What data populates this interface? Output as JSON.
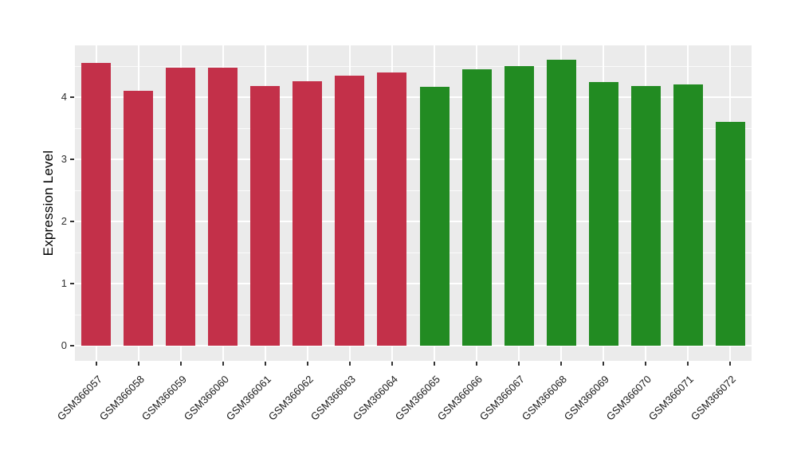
{
  "chart_data": {
    "type": "bar",
    "title": "",
    "xlabel": "",
    "ylabel": "Expression Level",
    "categories": [
      "GSM366057",
      "GSM366058",
      "GSM366059",
      "GSM366060",
      "GSM366061",
      "GSM366062",
      "GSM366063",
      "GSM366064",
      "GSM366065",
      "GSM366066",
      "GSM366067",
      "GSM366068",
      "GSM366069",
      "GSM366070",
      "GSM366071",
      "GSM366072"
    ],
    "values": [
      4.55,
      4.1,
      4.48,
      4.48,
      4.18,
      4.26,
      4.34,
      4.4,
      4.17,
      4.45,
      4.5,
      4.6,
      4.25,
      4.18,
      4.2,
      3.6
    ],
    "bar_colors": [
      "#C33049",
      "#C33049",
      "#C33049",
      "#C33049",
      "#C33049",
      "#C33049",
      "#C33049",
      "#C33049",
      "#228B22",
      "#228B22",
      "#228B22",
      "#228B22",
      "#228B22",
      "#228B22",
      "#228B22",
      "#228B22"
    ],
    "group_colors": {
      "left_group_red": "#C33049",
      "right_group_green": "#228B22"
    },
    "y_ticks": [
      0,
      1,
      2,
      3,
      4
    ],
    "y_minor_ticks": [
      0.5,
      1.5,
      2.5,
      3.5,
      4.5
    ],
    "ylim": [
      0,
      4.83
    ],
    "grid": true,
    "legend_position": "none",
    "panel_background": "#EBEBEB",
    "grid_color": "#FFFFFF"
  }
}
